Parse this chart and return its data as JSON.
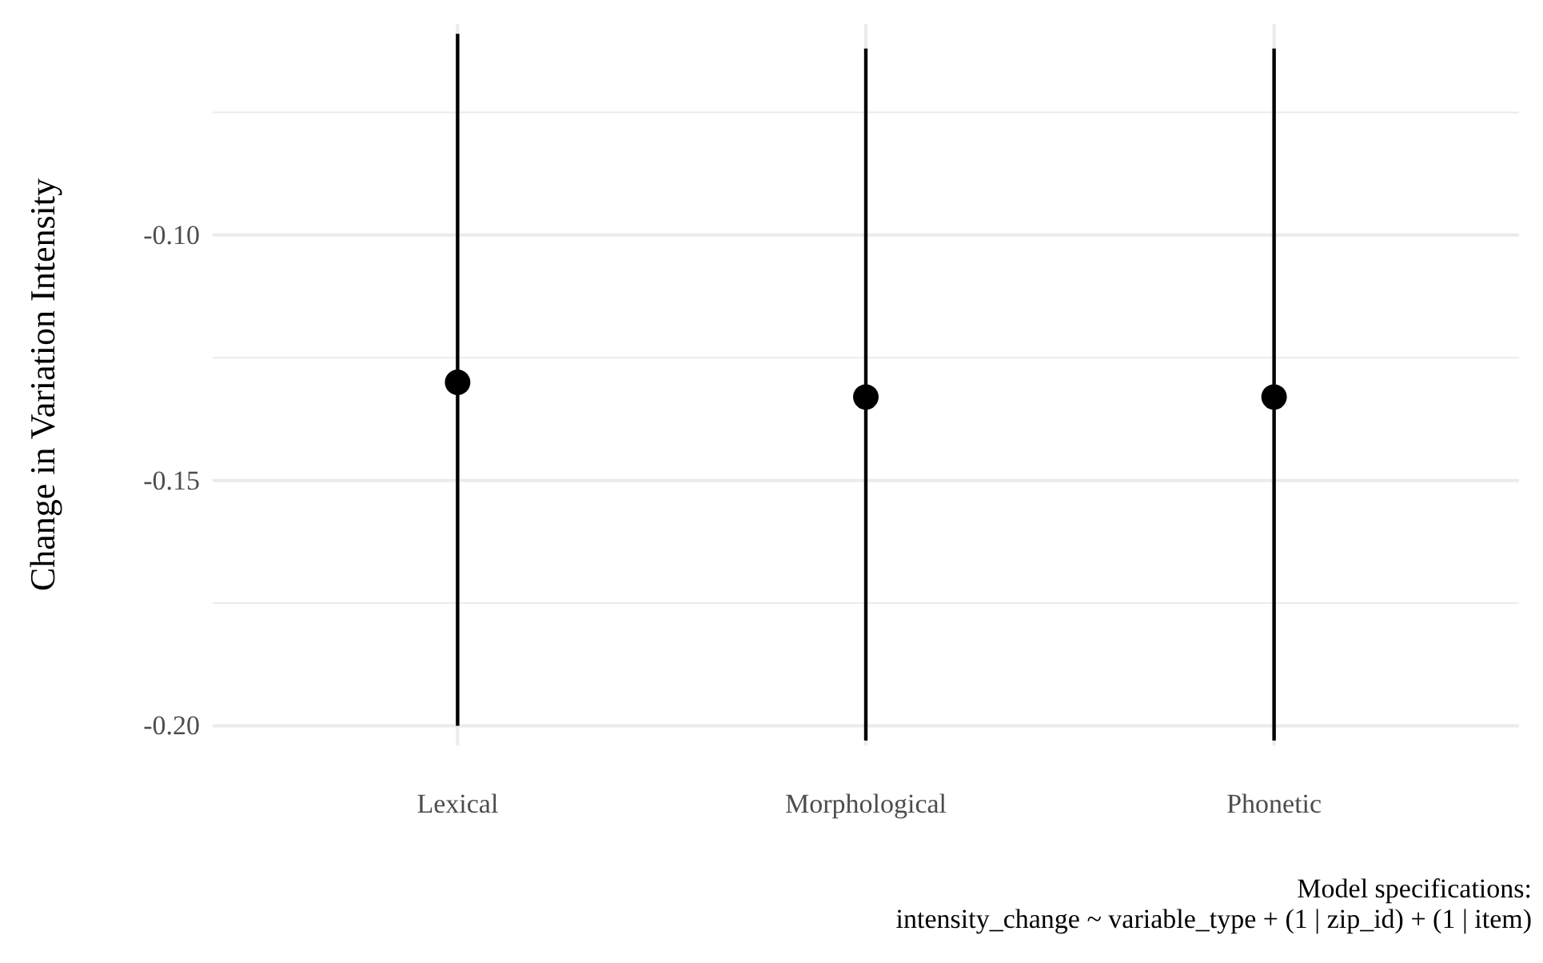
{
  "chart_data": {
    "type": "scatter",
    "ylabel": "Change in Variation Intensity",
    "categories": [
      "Lexical",
      "Morphological",
      "Phonetic"
    ],
    "values": [
      -0.13,
      -0.133,
      -0.133
    ],
    "errors": [
      [
        -0.2,
        -0.059
      ],
      [
        -0.203,
        -0.062
      ],
      [
        -0.203,
        -0.062
      ]
    ],
    "color": "#000000",
    "marker": "circle",
    "grid": true,
    "ylim": [
      -0.204,
      -0.057
    ],
    "yticks": [
      {
        "value": -0.2,
        "label": "-0.20"
      },
      {
        "value": -0.175,
        "label": null
      },
      {
        "value": -0.15,
        "label": "-0.15"
      },
      {
        "value": -0.125,
        "label": null
      },
      {
        "value": -0.1,
        "label": "-0.10"
      },
      {
        "value": -0.075,
        "label": null
      }
    ],
    "annotations": [
      "Model specifications:",
      "intensity_change ~ variable_type + (1 | zip_id) + (1 | item)"
    ]
  }
}
